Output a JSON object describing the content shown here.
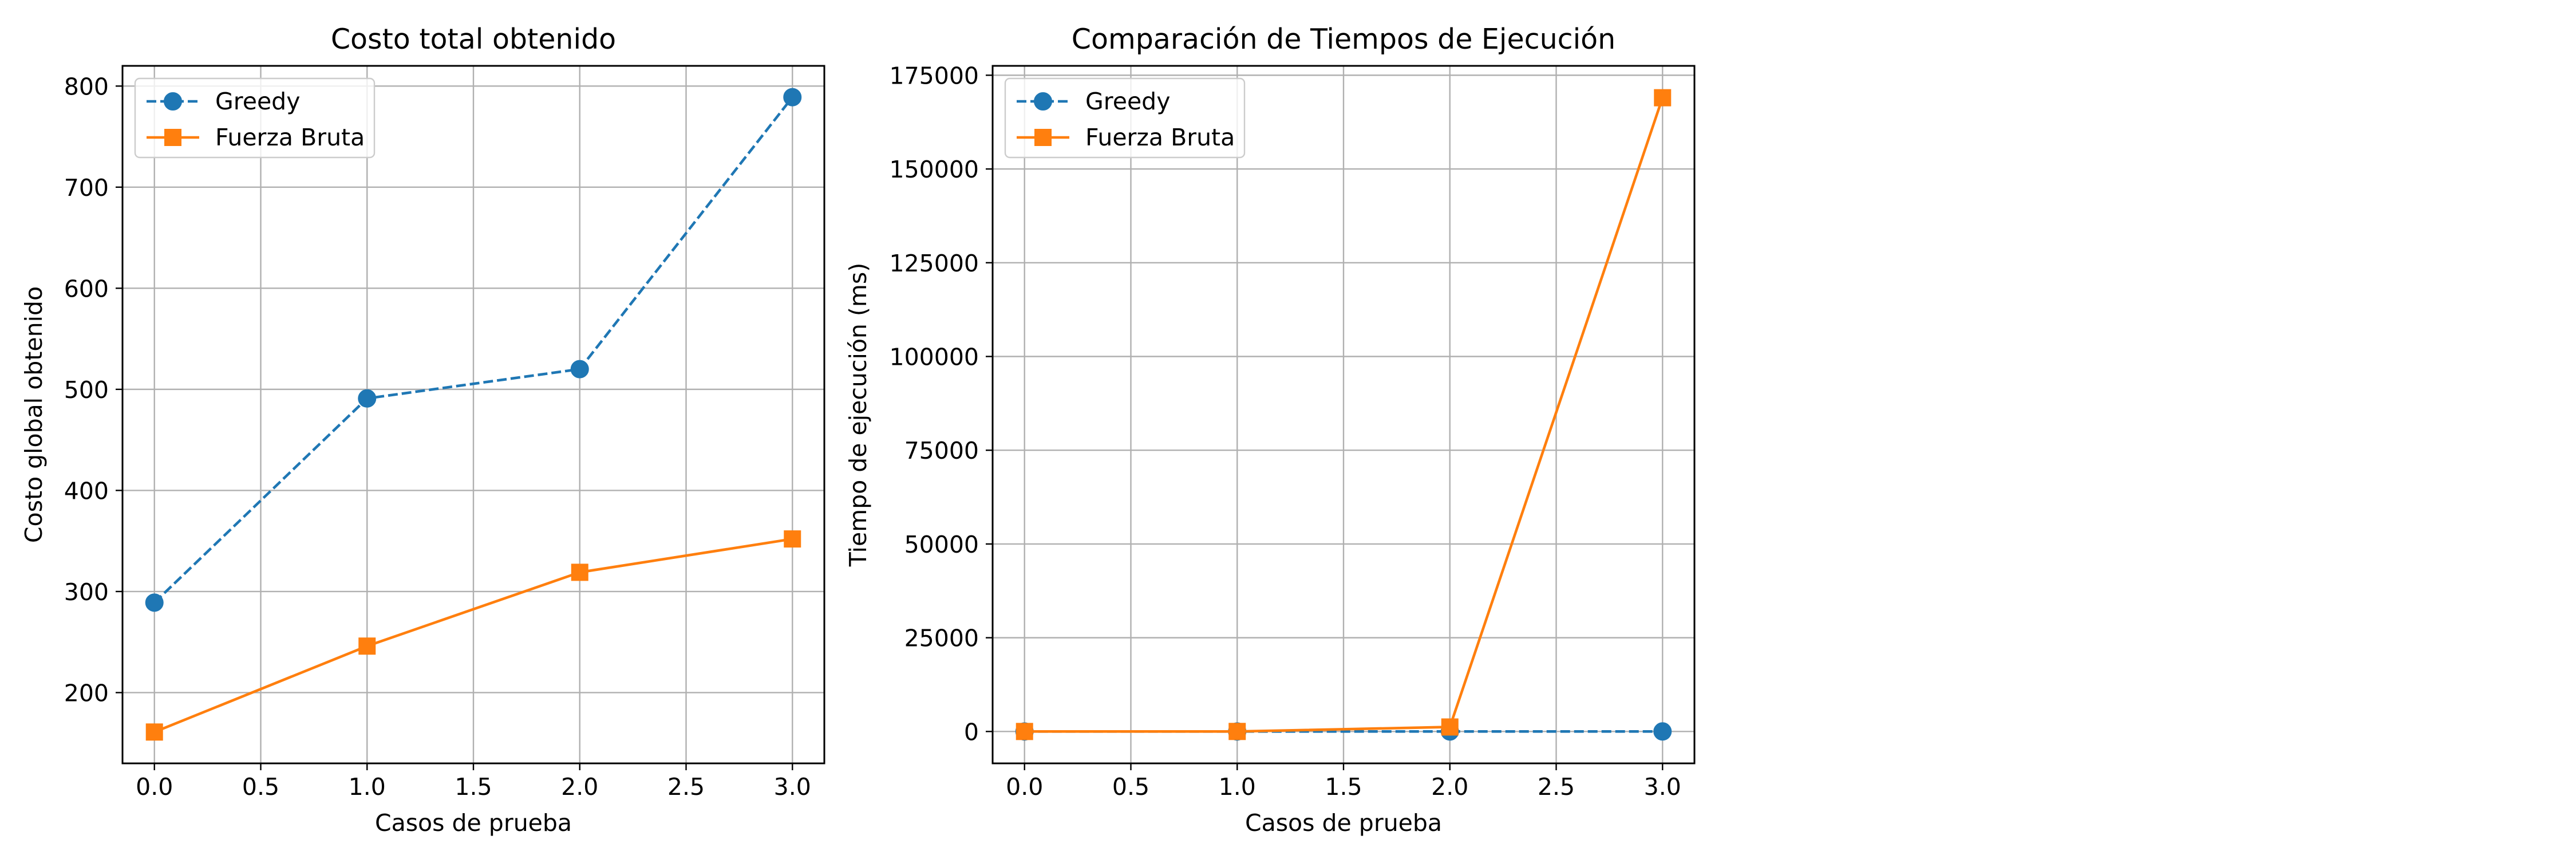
{
  "colors": {
    "greedy": "#1f77b4",
    "fuerza_bruta": "#ff7f0e",
    "grid": "#b0b0b0",
    "axes": "#000000",
    "background": "#ffffff"
  },
  "chart_data": [
    {
      "type": "line",
      "title": "Costo total obtenido",
      "xlabel": "Casos de prueba",
      "ylabel": "Costo global obtenido",
      "xlim": [
        -0.15,
        3.15
      ],
      "ylim": [
        130,
        820
      ],
      "xticks": [
        0.0,
        0.5,
        1.0,
        1.5,
        2.0,
        2.5,
        3.0
      ],
      "xtick_labels": [
        "0.0",
        "0.5",
        "1.0",
        "1.5",
        "2.0",
        "2.5",
        "3.0"
      ],
      "yticks": [
        200,
        300,
        400,
        500,
        600,
        700,
        800
      ],
      "ytick_labels": [
        "200",
        "300",
        "400",
        "500",
        "600",
        "700",
        "800"
      ],
      "grid": true,
      "legend_position": "upper-left",
      "x": [
        0,
        1,
        2,
        3
      ],
      "series": [
        {
          "name": "Greedy",
          "marker": "circle",
          "linestyle": "dashed",
          "color": "#1f77b4",
          "values": [
            289,
            491,
            520,
            789
          ]
        },
        {
          "name": "Fuerza Bruta",
          "marker": "square",
          "linestyle": "solid",
          "color": "#ff7f0e",
          "values": [
            161,
            246,
            319,
            352
          ]
        }
      ]
    },
    {
      "type": "line",
      "title": "Comparación de Tiempos de Ejecución",
      "xlabel": "Casos de prueba",
      "ylabel": "Tiempo de ejecución (ms)",
      "xlim": [
        -0.15,
        3.15
      ],
      "ylim": [
        -8500,
        177500
      ],
      "xticks": [
        0.0,
        0.5,
        1.0,
        1.5,
        2.0,
        2.5,
        3.0
      ],
      "xtick_labels": [
        "0.0",
        "0.5",
        "1.0",
        "1.5",
        "2.0",
        "2.5",
        "3.0"
      ],
      "yticks": [
        0,
        25000,
        50000,
        75000,
        100000,
        125000,
        150000,
        175000
      ],
      "ytick_labels": [
        "0",
        "25000",
        "50000",
        "75000",
        "100000",
        "125000",
        "150000",
        "175000"
      ],
      "grid": true,
      "legend_position": "upper-left",
      "x": [
        0,
        1,
        2,
        3
      ],
      "series": [
        {
          "name": "Greedy",
          "marker": "circle",
          "linestyle": "dashed",
          "color": "#1f77b4",
          "values": [
            1,
            1,
            2,
            5
          ]
        },
        {
          "name": "Fuerza Bruta",
          "marker": "square",
          "linestyle": "solid",
          "color": "#ff7f0e",
          "values": [
            2,
            10,
            1200,
            169000
          ]
        }
      ]
    }
  ]
}
